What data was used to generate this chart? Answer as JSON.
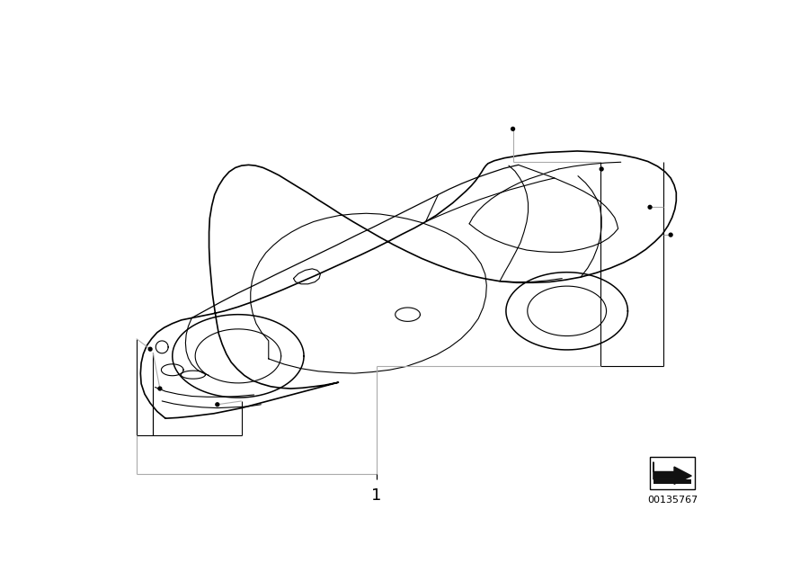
{
  "background_color": "#ffffff",
  "line_color": "#000000",
  "gray_color": "#aaaaaa",
  "part_number": "00135767",
  "label_1": "1",
  "figure_width": 9.0,
  "figure_height": 6.36,
  "dpi": 100
}
